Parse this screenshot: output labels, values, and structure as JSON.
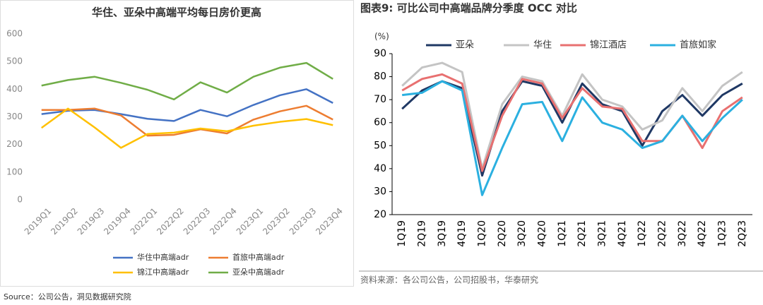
{
  "chart_data": [
    {
      "type": "line",
      "title": "华住、亚朵中高端平均每日房价更高",
      "categories": [
        "2019Q1",
        "2019Q2",
        "2019Q3",
        "2019Q4",
        "2022Q1",
        "2022Q2",
        "2022Q3",
        "2022Q4",
        "2023Q1",
        "2023Q2",
        "2023Q3",
        "2023Q4"
      ],
      "series": [
        {
          "name": "华住中高端adr",
          "color": "#4472c4",
          "values": [
            310,
            322,
            325,
            310,
            293,
            285,
            325,
            302,
            343,
            378,
            400,
            350
          ]
        },
        {
          "name": "首旅中高端adr",
          "color": "#ed7d31",
          "values": [
            325,
            325,
            330,
            305,
            232,
            235,
            255,
            240,
            290,
            320,
            340,
            290
          ]
        },
        {
          "name": "锦江中高端adr",
          "color": "#ffc000",
          "values": [
            260,
            330,
            262,
            188,
            238,
            243,
            258,
            248,
            268,
            282,
            292,
            270
          ]
        },
        {
          "name": "亚朵中高端adr",
          "color": "#70ad47",
          "values": [
            413,
            433,
            445,
            423,
            398,
            363,
            425,
            388,
            445,
            478,
            495,
            437
          ]
        }
      ],
      "ylim": [
        0,
        600
      ],
      "yticks": [
        0,
        100,
        200,
        300,
        400,
        500,
        600
      ],
      "grid": false,
      "source": "Source：公司公告，洞见数据研究院"
    },
    {
      "type": "line",
      "title": "图表9:  可比公司中高端品牌分季度 OCC 对比",
      "y_label": "(%)",
      "categories": [
        "1Q19",
        "2Q19",
        "3Q19",
        "4Q19",
        "1Q20",
        "2Q20",
        "3Q20",
        "4Q20",
        "1Q21",
        "2Q21",
        "3Q21",
        "4Q21",
        "1Q22",
        "2Q22",
        "3Q22",
        "4Q22",
        "1Q23",
        "2Q23"
      ],
      "series": [
        {
          "name": "亚朵",
          "color": "#1f3864",
          "values": [
            66,
            74,
            78,
            75,
            37,
            65,
            78,
            76,
            60,
            77,
            68,
            65,
            50,
            65,
            72,
            63,
            72,
            77
          ]
        },
        {
          "name": "华住",
          "color": "#c4c4c4",
          "values": [
            76,
            84,
            86,
            82,
            40,
            68,
            80,
            78,
            63,
            81,
            70,
            67,
            57,
            61,
            75,
            65,
            76,
            82
          ]
        },
        {
          "name": "锦江酒店",
          "color": "#e87070",
          "values": [
            74,
            79,
            81,
            77,
            39,
            63,
            79,
            77,
            62,
            75,
            67,
            66,
            52,
            52,
            63,
            49,
            65,
            71
          ]
        },
        {
          "name": "首旅如家",
          "color": "#2bb0e0",
          "values": [
            72,
            73,
            78,
            74,
            28.5,
            49,
            68,
            69,
            52,
            71,
            60,
            57,
            49,
            52,
            63,
            52,
            62,
            70
          ]
        }
      ],
      "ylim": [
        20,
        90
      ],
      "yticks": [
        20,
        30,
        40,
        50,
        60,
        70,
        80,
        90
      ],
      "grid": false,
      "source": "资料来源：各公司公告，公司招股书，华泰研究"
    }
  ]
}
